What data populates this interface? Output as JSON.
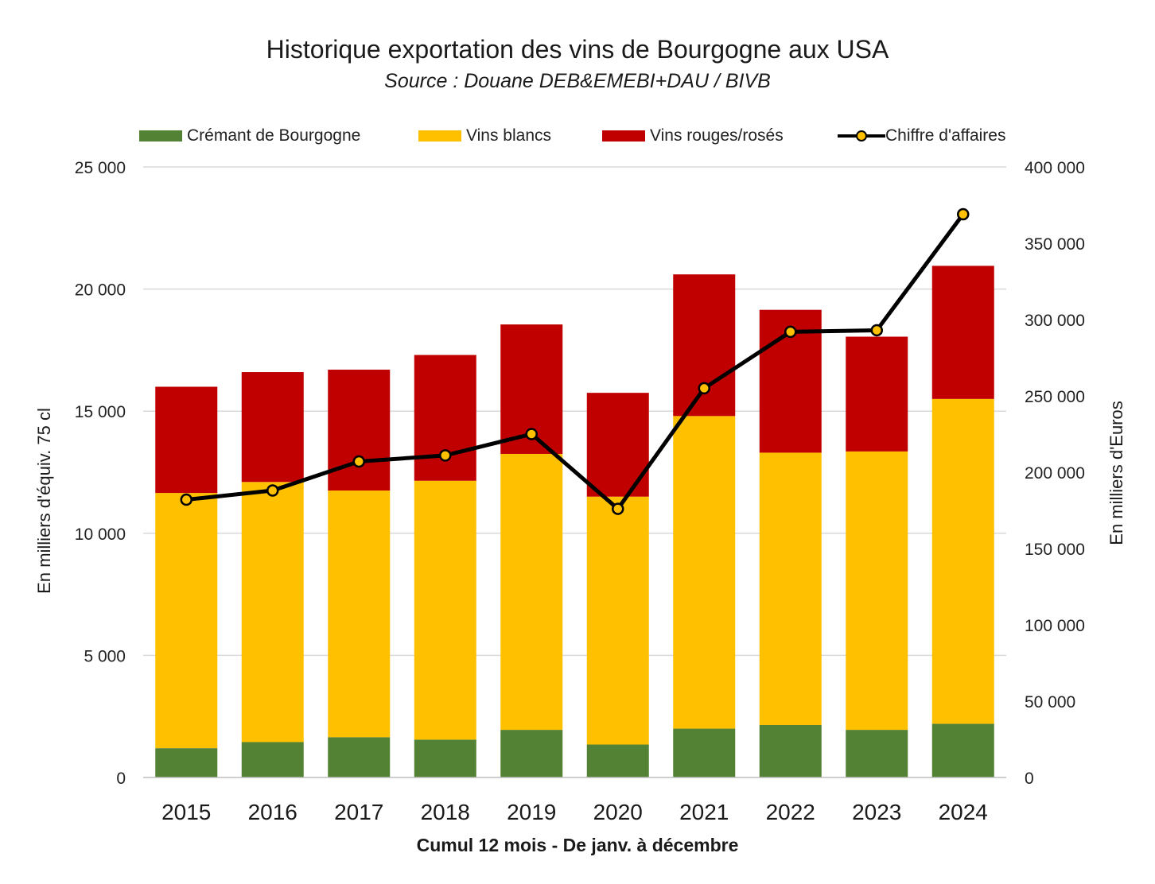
{
  "chart_data": {
    "type": "bar",
    "stacked": true,
    "title": "Historique exportation des vins de Bourgogne aux USA",
    "subtitle": "Source : Douane DEB&EMEBI+DAU / BIVB",
    "xlabel": "Cumul 12 mois - De janv. à décembre",
    "ylabel": "En milliers d'équiv. 75 cl",
    "y2label": "En milliers d'Euros",
    "categories": [
      "2015",
      "2016",
      "2017",
      "2018",
      "2019",
      "2020",
      "2021",
      "2022",
      "2023",
      "2024"
    ],
    "ylim": [
      0,
      25000
    ],
    "y_ticks": [
      0,
      5000,
      10000,
      15000,
      20000,
      25000
    ],
    "y_tick_labels": [
      "0",
      "5 000",
      "10 000",
      "15 000",
      "20 000",
      "25 000"
    ],
    "y2lim": [
      0,
      400000
    ],
    "y2_ticks": [
      0,
      50000,
      100000,
      150000,
      200000,
      250000,
      300000,
      350000,
      400000
    ],
    "y2_tick_labels": [
      "0",
      "50 000",
      "100 000",
      "150 000",
      "200 000",
      "250 000",
      "300 000",
      "350 000",
      "400 000"
    ],
    "grid": true,
    "legend_position": "top",
    "series": [
      {
        "name": "Crémant de Bourgogne",
        "kind": "bar",
        "axis": "left",
        "color": "#548235",
        "values": [
          1200,
          1450,
          1650,
          1550,
          1950,
          1350,
          2000,
          2150,
          1950,
          2200
        ]
      },
      {
        "name": "Vins blancs",
        "kind": "bar",
        "axis": "left",
        "color": "#FFC000",
        "values": [
          10450,
          10650,
          10100,
          10600,
          11300,
          10150,
          12800,
          11150,
          11400,
          13300
        ]
      },
      {
        "name": "Vins rouges/rosés",
        "kind": "bar",
        "axis": "left",
        "color": "#C00000",
        "values": [
          4350,
          4500,
          4950,
          5150,
          5300,
          4250,
          5800,
          5850,
          4700,
          5450
        ]
      },
      {
        "name": "Chiffre d'affaires",
        "kind": "line",
        "axis": "right",
        "color": "#000000",
        "marker_color": "#FFC000",
        "values": [
          182000,
          188000,
          207000,
          211000,
          225000,
          176000,
          255000,
          292000,
          293000,
          369000
        ]
      }
    ]
  }
}
